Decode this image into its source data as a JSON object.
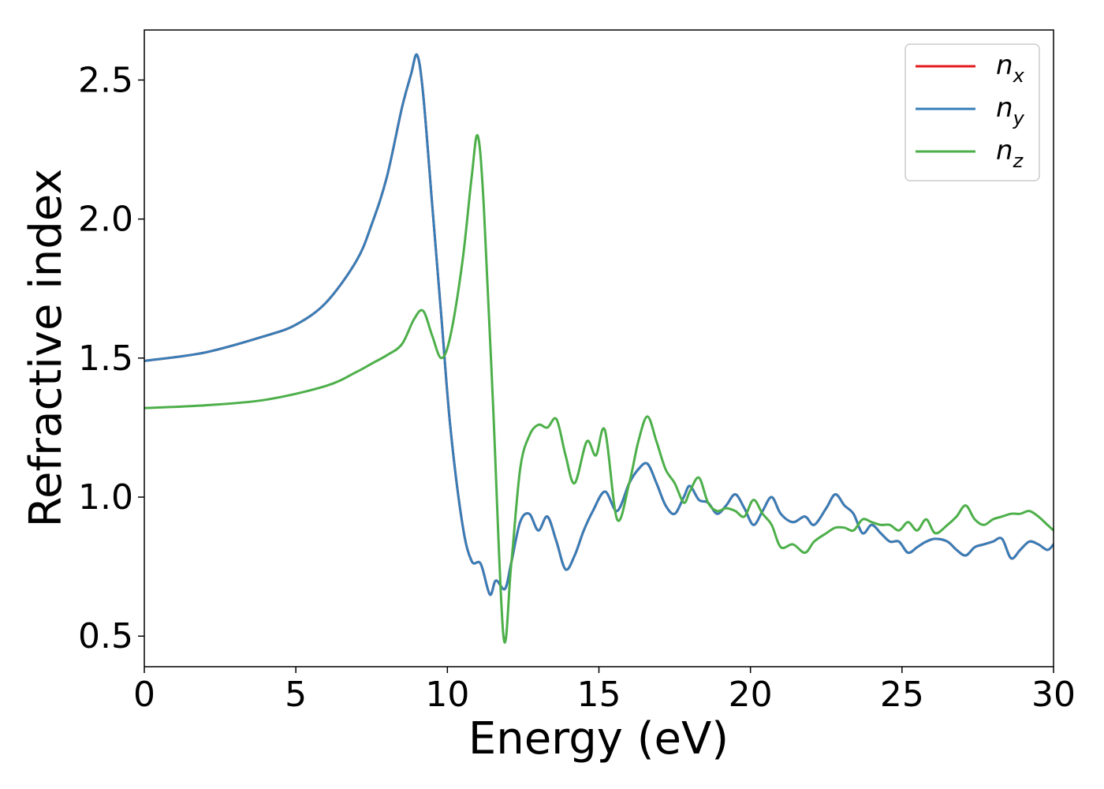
{
  "chart_data": {
    "type": "line",
    "xlabel": "Energy (eV)",
    "ylabel": "Refractive index",
    "xlim": [
      0,
      30
    ],
    "ylim": [
      0.39,
      2.68
    ],
    "x_ticks": [
      0,
      5,
      10,
      15,
      20,
      25,
      30
    ],
    "x_tick_labels": [
      "0",
      "5",
      "10",
      "15",
      "20",
      "25",
      "30"
    ],
    "y_ticks": [
      0.5,
      1.0,
      1.5,
      2.0,
      2.5
    ],
    "y_tick_labels": [
      "0.5",
      "1.0",
      "1.5",
      "2.0",
      "2.5"
    ],
    "grid": false,
    "legend_position": "top-right",
    "series": [
      {
        "name": "n_x",
        "legend_main": "n",
        "legend_sub": "x",
        "color": "#e41a1c",
        "x": [
          0,
          2,
          4,
          5,
          6,
          7,
          7.5,
          8,
          8.5,
          8.8,
          9.0,
          9.2,
          9.5,
          9.8,
          10.1,
          10.5,
          10.8,
          11.1,
          11.4,
          11.6,
          11.9,
          12.1,
          12.4,
          12.7,
          13.0,
          13.3,
          13.6,
          13.9,
          14.2,
          14.5,
          14.8,
          15.2,
          15.6,
          16.0,
          16.3,
          16.6,
          16.9,
          17.2,
          17.5,
          17.8,
          18.0,
          18.3,
          18.6,
          18.9,
          19.2,
          19.5,
          19.8,
          20.1,
          20.4,
          20.7,
          21.0,
          21.4,
          21.8,
          22.1,
          22.5,
          22.8,
          23.1,
          23.4,
          23.7,
          24.0,
          24.3,
          24.6,
          24.9,
          25.2,
          25.5,
          25.8,
          26.1,
          26.5,
          26.8,
          27.1,
          27.4,
          27.7,
          28.0,
          28.3,
          28.6,
          28.9,
          29.2,
          29.5,
          29.8,
          30.0
        ],
        "y": [
          1.49,
          1.52,
          1.58,
          1.62,
          1.7,
          1.85,
          1.98,
          2.15,
          2.4,
          2.52,
          2.59,
          2.45,
          2.05,
          1.65,
          1.25,
          0.9,
          0.77,
          0.76,
          0.65,
          0.7,
          0.67,
          0.76,
          0.91,
          0.94,
          0.88,
          0.93,
          0.84,
          0.74,
          0.79,
          0.88,
          0.95,
          1.02,
          0.95,
          1.05,
          1.1,
          1.12,
          1.05,
          0.97,
          0.94,
          1.0,
          1.04,
          0.99,
          0.98,
          0.94,
          0.97,
          1.01,
          0.96,
          0.9,
          0.95,
          1.0,
          0.94,
          0.91,
          0.93,
          0.9,
          0.96,
          1.01,
          0.97,
          0.94,
          0.87,
          0.9,
          0.87,
          0.84,
          0.84,
          0.8,
          0.82,
          0.84,
          0.85,
          0.84,
          0.81,
          0.79,
          0.82,
          0.83,
          0.84,
          0.85,
          0.78,
          0.81,
          0.84,
          0.83,
          0.81,
          0.83
        ]
      },
      {
        "name": "n_y",
        "legend_main": "n",
        "legend_sub": "y",
        "color": "#377eb8",
        "x": [
          0,
          2,
          4,
          5,
          6,
          7,
          7.5,
          8,
          8.5,
          8.8,
          9.0,
          9.2,
          9.5,
          9.8,
          10.1,
          10.5,
          10.8,
          11.1,
          11.4,
          11.6,
          11.9,
          12.1,
          12.4,
          12.7,
          13.0,
          13.3,
          13.6,
          13.9,
          14.2,
          14.5,
          14.8,
          15.2,
          15.6,
          16.0,
          16.3,
          16.6,
          16.9,
          17.2,
          17.5,
          17.8,
          18.0,
          18.3,
          18.6,
          18.9,
          19.2,
          19.5,
          19.8,
          20.1,
          20.4,
          20.7,
          21.0,
          21.4,
          21.8,
          22.1,
          22.5,
          22.8,
          23.1,
          23.4,
          23.7,
          24.0,
          24.3,
          24.6,
          24.9,
          25.2,
          25.5,
          25.8,
          26.1,
          26.5,
          26.8,
          27.1,
          27.4,
          27.7,
          28.0,
          28.3,
          28.6,
          28.9,
          29.2,
          29.5,
          29.8,
          30.0
        ],
        "y": [
          1.49,
          1.52,
          1.58,
          1.62,
          1.7,
          1.85,
          1.98,
          2.15,
          2.4,
          2.52,
          2.59,
          2.45,
          2.05,
          1.65,
          1.25,
          0.9,
          0.77,
          0.76,
          0.65,
          0.7,
          0.67,
          0.76,
          0.91,
          0.94,
          0.88,
          0.93,
          0.84,
          0.74,
          0.79,
          0.88,
          0.95,
          1.02,
          0.95,
          1.05,
          1.1,
          1.12,
          1.05,
          0.97,
          0.94,
          1.0,
          1.04,
          0.99,
          0.98,
          0.94,
          0.97,
          1.01,
          0.96,
          0.9,
          0.95,
          1.0,
          0.94,
          0.91,
          0.93,
          0.9,
          0.96,
          1.01,
          0.97,
          0.94,
          0.87,
          0.9,
          0.87,
          0.84,
          0.84,
          0.8,
          0.82,
          0.84,
          0.85,
          0.84,
          0.81,
          0.79,
          0.82,
          0.83,
          0.84,
          0.85,
          0.78,
          0.81,
          0.84,
          0.83,
          0.81,
          0.83
        ]
      },
      {
        "name": "n_z",
        "legend_main": "n",
        "legend_sub": "z",
        "color": "#4daf4a",
        "x": [
          0,
          2,
          4,
          6,
          7,
          7.5,
          8.0,
          8.5,
          8.9,
          9.2,
          9.5,
          9.8,
          10.1,
          10.5,
          10.8,
          11.0,
          11.2,
          11.5,
          11.85,
          12.1,
          12.4,
          12.7,
          13.0,
          13.3,
          13.6,
          13.9,
          14.2,
          14.6,
          14.9,
          15.2,
          15.6,
          16.0,
          16.3,
          16.6,
          16.9,
          17.2,
          17.5,
          17.8,
          18.0,
          18.3,
          18.6,
          18.9,
          19.2,
          19.5,
          19.8,
          20.1,
          20.4,
          20.7,
          21.0,
          21.4,
          21.8,
          22.1,
          22.5,
          22.8,
          23.1,
          23.4,
          23.7,
          24.0,
          24.3,
          24.6,
          24.9,
          25.2,
          25.5,
          25.8,
          26.1,
          26.5,
          26.8,
          27.1,
          27.4,
          27.7,
          28.0,
          28.3,
          28.6,
          28.9,
          29.2,
          29.5,
          29.8,
          30.0
        ],
        "y": [
          1.32,
          1.33,
          1.35,
          1.4,
          1.45,
          1.48,
          1.51,
          1.55,
          1.64,
          1.67,
          1.58,
          1.5,
          1.58,
          1.85,
          2.15,
          2.3,
          2.05,
          1.35,
          0.5,
          0.75,
          1.1,
          1.22,
          1.26,
          1.25,
          1.28,
          1.15,
          1.05,
          1.2,
          1.15,
          1.24,
          0.92,
          1.05,
          1.2,
          1.29,
          1.2,
          1.1,
          1.05,
          0.98,
          1.02,
          1.07,
          0.98,
          0.95,
          0.96,
          0.95,
          0.93,
          0.99,
          0.94,
          0.9,
          0.82,
          0.83,
          0.8,
          0.84,
          0.87,
          0.89,
          0.89,
          0.88,
          0.92,
          0.91,
          0.9,
          0.9,
          0.88,
          0.91,
          0.88,
          0.92,
          0.87,
          0.9,
          0.93,
          0.97,
          0.92,
          0.9,
          0.92,
          0.93,
          0.94,
          0.94,
          0.95,
          0.93,
          0.9,
          0.88
        ]
      }
    ]
  }
}
